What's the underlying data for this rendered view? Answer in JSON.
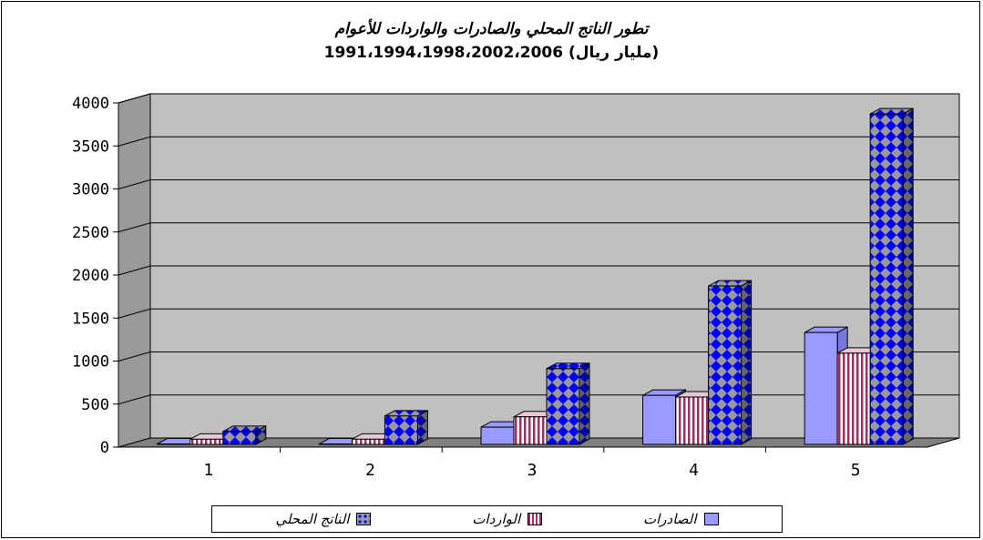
{
  "chart_data": {
    "type": "bar",
    "title": "ﺗﻄﻮﺭ ﺍﻟﻨﺎﺗﺞ ﺍﻟﻤﺤﻠﻲ ﻭﺍﻟﺼﺎﺩﺭﺍﺕ ﻭﺍﻟﻮﺍﺭﺩﺍﺕ ﻟﻸﻋﻮﺍﻡ",
    "subtitle": "1991،1994،1998،2002،2006 (ﻣﻠﻴﺎﺭ ﺭﻳﺎﻝ)",
    "categories": [
      "1",
      "2",
      "3",
      "4",
      "5"
    ],
    "yticks": [
      "0",
      "500",
      "1000",
      "1500",
      "2000",
      "2500",
      "3000",
      "3500",
      "4000"
    ],
    "ylim": [
      0,
      4000
    ],
    "series": [
      {
        "name": "ﺍﻟﺼﺎﺩﺭﺍﺕ",
        "pattern": "solid",
        "color": "#9999ff",
        "values": [
          5,
          5,
          200,
          570,
          1300
        ]
      },
      {
        "name": "ﺍﻟﻮﺍﺭﺩﺍﺕ",
        "pattern": "vstripes",
        "color": "#993366",
        "values": [
          60,
          60,
          320,
          550,
          1060
        ]
      },
      {
        "name": "ﺍﻟﻨﺎﺗﺞ ﺍﻟﻤﺤﻠﻲ",
        "pattern": "diamonds",
        "color": "#0000ff",
        "values": [
          150,
          330,
          880,
          1840,
          3840
        ]
      }
    ],
    "legend_position": "bottom",
    "grid": true,
    "wall_color": "#c0c0c0"
  }
}
